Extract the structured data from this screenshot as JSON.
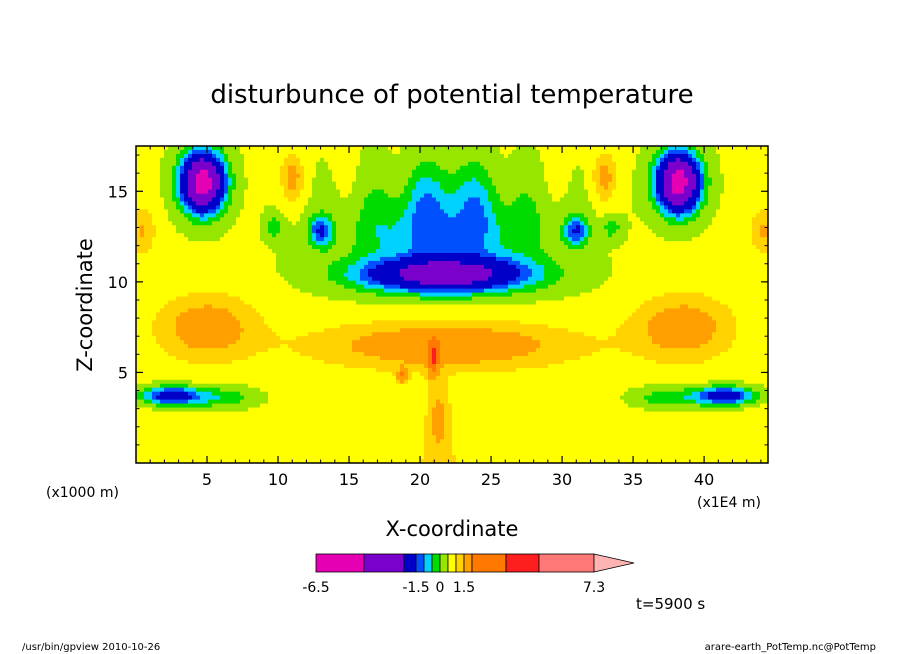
{
  "chart_data": {
    "type": "heatmap",
    "title": "disturbunce of potential temperature",
    "xlabel": "X-coordinate",
    "ylabel": "Z-coordinate",
    "x_unit": "(x1E4 m)",
    "y_unit": "(x1000 m)",
    "xlim": [
      0,
      44.5
    ],
    "ylim": [
      0,
      17.5
    ],
    "x_ticks": [
      5,
      10,
      15,
      20,
      25,
      30,
      35,
      40
    ],
    "y_ticks": [
      5,
      10,
      15
    ],
    "colorbar": {
      "levels": [
        -6.5,
        -5.3,
        -3.0,
        -1.5,
        -1.0,
        -0.5,
        0,
        0.5,
        1.0,
        1.5,
        2.5,
        4.0,
        5.0,
        7.3
      ],
      "colors": [
        "#e600b4",
        "#7a00cc",
        "#0000c8",
        "#0050ff",
        "#00d2ff",
        "#00dc00",
        "#96e600",
        "#ffff00",
        "#ffd200",
        "#ffa000",
        "#ff7800",
        "#ff1e1e",
        "#ff7878",
        "#ffb4b4"
      ],
      "tick_labels": [
        {
          "value": -6.5,
          "label": "-6.5"
        },
        {
          "value": -1.5,
          "label": "-1.5"
        },
        {
          "value": 0,
          "label": "0"
        },
        {
          "value": 1.5,
          "label": "1.5"
        },
        {
          "value": 7.3,
          "label": "7.3"
        }
      ]
    },
    "features": [
      {
        "x": 4.7,
        "z": 15.5,
        "sx": 1.4,
        "sy": 1.5,
        "amp": -7.0
      },
      {
        "x": 38.2,
        "z": 15.5,
        "sx": 1.4,
        "sy": 1.5,
        "amp": -7.0
      },
      {
        "x": 21.8,
        "z": 10.4,
        "sx": 5.5,
        "sy": 0.9,
        "amp": -4.5
      },
      {
        "x": 21.8,
        "z": 12.5,
        "sx": 6.5,
        "sy": 2.2,
        "amp": -1.5
      },
      {
        "x": 22.0,
        "z": 14.8,
        "sx": 4.0,
        "sy": 2.2,
        "amp": -0.9
      },
      {
        "x": 13.0,
        "z": 12.8,
        "sx": 0.8,
        "sy": 0.8,
        "amp": -2.0
      },
      {
        "x": 31.0,
        "z": 12.8,
        "sx": 0.8,
        "sy": 0.8,
        "amp": -2.0
      },
      {
        "x": 9.8,
        "z": 13.0,
        "sx": 0.6,
        "sy": 0.6,
        "amp": -0.9
      },
      {
        "x": 33.5,
        "z": 13.0,
        "sx": 0.6,
        "sy": 0.6,
        "amp": -0.9
      },
      {
        "x": 2.5,
        "z": 3.7,
        "sx": 2.0,
        "sy": 0.5,
        "amp": -2.8
      },
      {
        "x": 41.5,
        "z": 3.7,
        "sx": 2.0,
        "sy": 0.5,
        "amp": -2.8
      },
      {
        "x": 6.0,
        "z": 3.6,
        "sx": 2.5,
        "sy": 0.6,
        "amp": -1.0
      },
      {
        "x": 37.5,
        "z": 3.6,
        "sx": 2.5,
        "sy": 0.6,
        "amp": -1.0
      },
      {
        "x": 11.0,
        "z": 15.8,
        "sx": 0.8,
        "sy": 1.3,
        "amp": 1.2
      },
      {
        "x": 33.0,
        "z": 15.8,
        "sx": 0.8,
        "sy": 1.3,
        "amp": 1.2
      },
      {
        "x": 0.4,
        "z": 12.8,
        "sx": 1.0,
        "sy": 1.3,
        "amp": 1.0
      },
      {
        "x": 44.2,
        "z": 12.8,
        "sx": 1.0,
        "sy": 1.3,
        "amp": 1.0
      },
      {
        "x": 5.0,
        "z": 7.5,
        "sx": 3.5,
        "sy": 1.8,
        "amp": 1.4
      },
      {
        "x": 38.5,
        "z": 7.5,
        "sx": 3.5,
        "sy": 1.8,
        "amp": 1.4
      },
      {
        "x": 21.8,
        "z": 6.5,
        "sx": 9.0,
        "sy": 1.3,
        "amp": 1.6
      },
      {
        "x": 20.9,
        "z": 5.8,
        "sx": 0.35,
        "sy": 0.9,
        "amp": 2.8
      },
      {
        "x": 18.8,
        "z": 4.8,
        "sx": 0.4,
        "sy": 0.4,
        "amp": 1.8
      },
      {
        "x": 21.3,
        "z": 2.5,
        "sx": 0.8,
        "sy": 2.2,
        "amp": 1.0
      }
    ]
  },
  "timestamp_label": "t=5900 s",
  "footer_left": "/usr/bin/gpview  2010-10-26",
  "footer_right": "arare-earth_PotTemp.nc@PotTemp"
}
